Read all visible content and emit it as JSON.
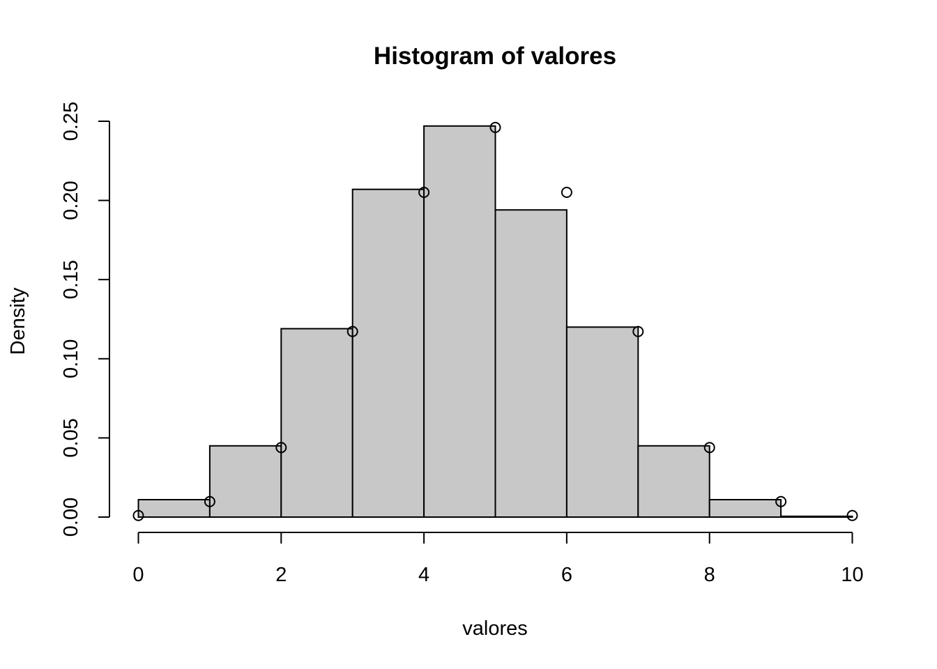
{
  "chart_data": {
    "type": "bar",
    "title": "Histogram of valores",
    "xlabel": "valores",
    "ylabel": "Density",
    "xlim": [
      0,
      10
    ],
    "ylim": [
      0,
      0.25
    ],
    "x_ticks": [
      0,
      2,
      4,
      6,
      8,
      10
    ],
    "x_tick_labels": [
      "0",
      "2",
      "4",
      "6",
      "8",
      "10"
    ],
    "y_ticks": [
      0,
      0.05,
      0.1,
      0.15,
      0.2,
      0.25
    ],
    "y_tick_labels": [
      "0.00",
      "0.05",
      "0.10",
      "0.15",
      "0.20",
      "0.25"
    ],
    "bins": [
      {
        "from": 0,
        "to": 1,
        "density": 0.011
      },
      {
        "from": 1,
        "to": 2,
        "density": 0.045
      },
      {
        "from": 2,
        "to": 3,
        "density": 0.119
      },
      {
        "from": 3,
        "to": 4,
        "density": 0.207
      },
      {
        "from": 4,
        "to": 5,
        "density": 0.247
      },
      {
        "from": 5,
        "to": 6,
        "density": 0.194
      },
      {
        "from": 6,
        "to": 7,
        "density": 0.12
      },
      {
        "from": 7,
        "to": 8,
        "density": 0.045
      },
      {
        "from": 8,
        "to": 9,
        "density": 0.011
      },
      {
        "from": 9,
        "to": 10,
        "density": 0.0005
      }
    ],
    "points": {
      "x": [
        0,
        1,
        2,
        3,
        4,
        5,
        6,
        7,
        8,
        9,
        10
      ],
      "y": [
        0.001,
        0.0098,
        0.0439,
        0.1172,
        0.2051,
        0.2461,
        0.2051,
        0.1172,
        0.0439,
        0.0098,
        0.001
      ]
    },
    "grid": false,
    "legend": "none"
  }
}
